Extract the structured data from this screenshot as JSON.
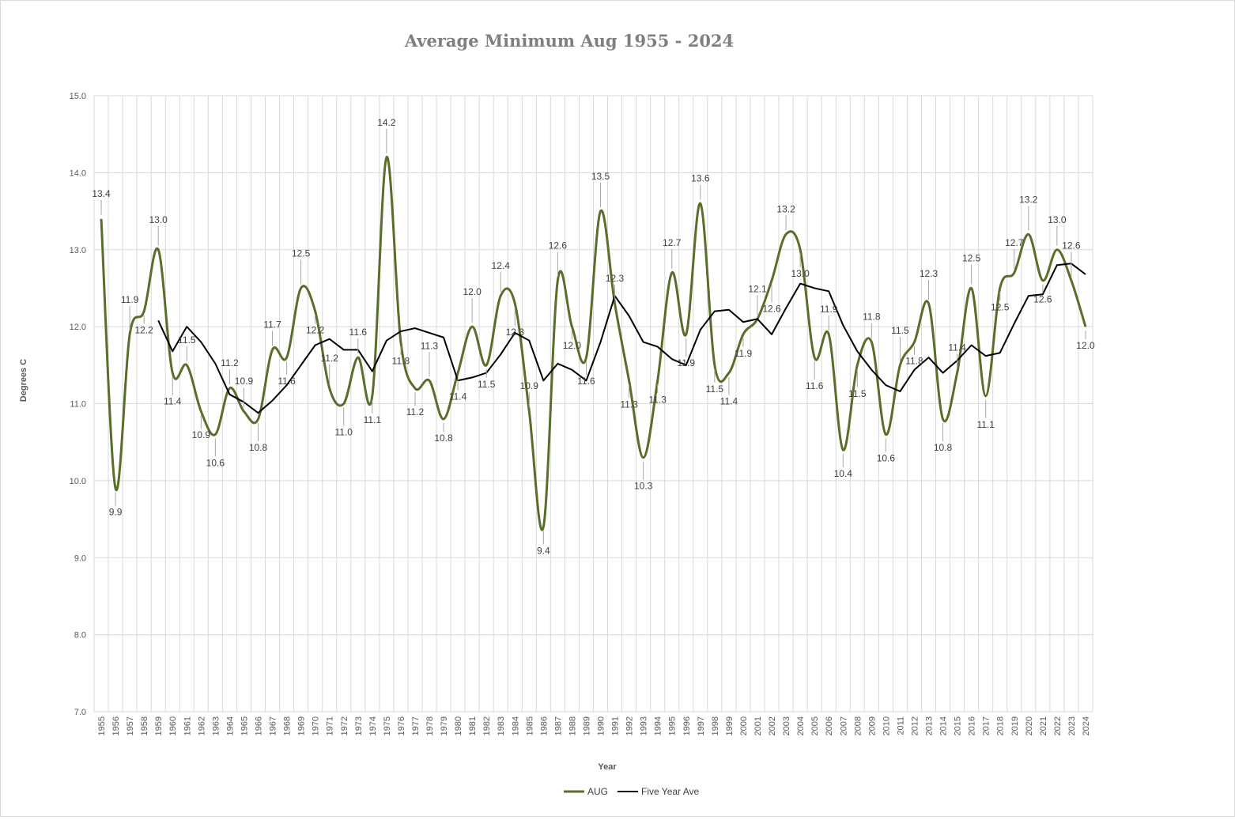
{
  "chart_data": {
    "type": "line",
    "title": "Average Minimum Aug 1955 - 2024",
    "xlabel": "Year",
    "ylabel": "Degrees C",
    "ylim": [
      7.0,
      15.0
    ],
    "yticks": [
      "7.0",
      "8.0",
      "9.0",
      "10.0",
      "11.0",
      "12.0",
      "13.0",
      "14.0",
      "15.0"
    ],
    "grid": true,
    "legend_position": "bottom",
    "x": [
      1955,
      1956,
      1957,
      1958,
      1959,
      1960,
      1961,
      1962,
      1963,
      1964,
      1965,
      1966,
      1967,
      1968,
      1969,
      1970,
      1971,
      1972,
      1973,
      1974,
      1975,
      1976,
      1977,
      1978,
      1979,
      1980,
      1981,
      1982,
      1983,
      1984,
      1985,
      1986,
      1987,
      1988,
      1989,
      1990,
      1991,
      1992,
      1993,
      1994,
      1995,
      1996,
      1997,
      1998,
      1999,
      2000,
      2001,
      2002,
      2003,
      2004,
      2005,
      2006,
      2007,
      2008,
      2009,
      2010,
      2011,
      2012,
      2013,
      2014,
      2015,
      2016,
      2017,
      2018,
      2019,
      2020,
      2021,
      2022,
      2023,
      2024
    ],
    "series": [
      {
        "name": "AUG",
        "color": "#5a6e2b",
        "smooth": true,
        "values": [
          13.4,
          9.9,
          11.9,
          12.2,
          13.0,
          11.4,
          11.5,
          10.9,
          10.6,
          11.2,
          10.9,
          10.8,
          11.7,
          11.6,
          12.5,
          12.2,
          11.2,
          11.0,
          11.6,
          11.1,
          14.2,
          11.8,
          11.2,
          11.3,
          10.8,
          11.4,
          12.0,
          11.5,
          12.4,
          12.3,
          10.9,
          9.4,
          12.6,
          12.0,
          11.6,
          13.5,
          12.3,
          11.3,
          10.3,
          11.3,
          12.7,
          11.9,
          13.6,
          11.5,
          11.4,
          11.9,
          12.1,
          12.6,
          13.2,
          13.0,
          11.6,
          11.9,
          10.4,
          11.5,
          11.8,
          10.6,
          11.5,
          11.8,
          12.3,
          10.8,
          11.4,
          12.5,
          11.1,
          12.5,
          12.7,
          13.2,
          12.6,
          13.0,
          12.6,
          12.0
        ]
      },
      {
        "name": "Five Year Ave",
        "color": "#000000",
        "smooth": false,
        "values": [
          null,
          null,
          null,
          null,
          12.08,
          11.68,
          12.0,
          11.8,
          11.52,
          11.12,
          11.02,
          10.88,
          11.04,
          11.24,
          11.5,
          11.76,
          11.84,
          11.7,
          11.7,
          11.42,
          11.82,
          11.94,
          11.98,
          11.92,
          11.86,
          11.3,
          11.34,
          11.4,
          11.64,
          11.92,
          11.82,
          11.3,
          11.52,
          11.44,
          11.3,
          11.8,
          12.4,
          12.14,
          11.8,
          11.74,
          11.58,
          11.5,
          11.96,
          12.2,
          12.22,
          12.06,
          12.1,
          11.9,
          12.24,
          12.56,
          12.5,
          12.46,
          12.02,
          11.68,
          11.44,
          11.24,
          11.16,
          11.44,
          11.6,
          11.4,
          11.56,
          11.76,
          11.62,
          11.66,
          12.04,
          12.4,
          12.42,
          12.8,
          12.82,
          12.68
        ]
      }
    ],
    "data_labels": [
      "13.4",
      "9.9",
      "11.9",
      "12.2",
      "13.0",
      "11.4",
      "11.5",
      "10.9",
      "10.6",
      "11.2",
      "10.9",
      "10.8",
      "11.7",
      "11.6",
      "12.5",
      "12.2",
      "11.2",
      "11.0",
      "11.6",
      "11.1",
      "14.2",
      "11.8",
      "11.2",
      "11.3",
      "10.8",
      "11.4",
      "12.0",
      "11.5",
      "12.4",
      "12.3",
      "10.9",
      "9.4",
      "12.6",
      "12.0",
      "11.6",
      "13.5",
      "12.3",
      "11.3",
      "10.3",
      "11.3",
      "12.7",
      "11.9",
      "13.6",
      "11.5",
      "11.4",
      "11.9",
      "12.1",
      "12.6",
      "13.2",
      "13.0",
      "11.6",
      "11.9",
      "10.4",
      "11.5",
      "11.8",
      "10.6",
      "11.5",
      "11.8",
      "12.3",
      "10.8",
      "11.4",
      "12.5",
      "11.1",
      "12.5",
      "12.7",
      "13.2",
      "12.6",
      "13.0",
      "12.6",
      "12.0"
    ]
  }
}
